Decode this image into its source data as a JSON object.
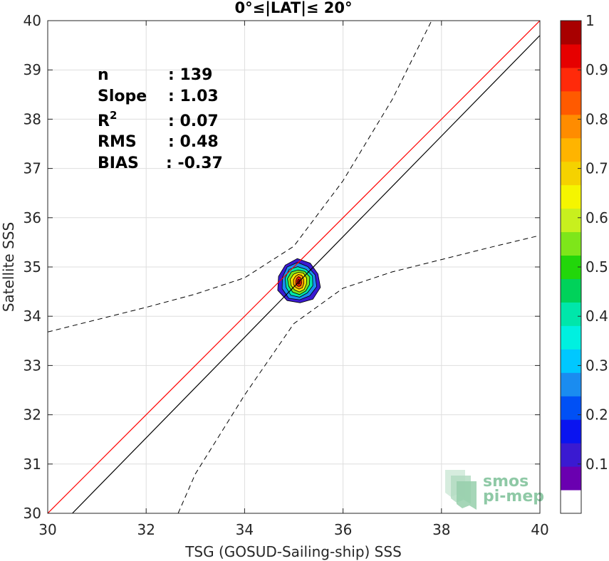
{
  "chart_data": {
    "type": "scatter",
    "title": "0°≤|LAT|≤ 20°",
    "xlabel": "TSG (GOSUD-Sailing-ship) SSS",
    "ylabel": "Satellite SSS",
    "xlim": [
      30,
      40
    ],
    "ylim": [
      30,
      40
    ],
    "xticks": [
      "30",
      "32",
      "34",
      "36",
      "38",
      "40"
    ],
    "yticks": [
      "30",
      "31",
      "32",
      "33",
      "34",
      "35",
      "36",
      "37",
      "38",
      "39",
      "40"
    ],
    "grid": true,
    "stats": [
      {
        "key": "n",
        "value": ": 139"
      },
      {
        "key": "Slope",
        "value": ": 1.03"
      },
      {
        "key": "R",
        "sup": "2",
        "value": ": 0.07"
      },
      {
        "key": "RMS",
        "value": ": 0.48"
      },
      {
        "key": "BIAS",
        "value": ": -0.37"
      }
    ],
    "identity_line": {
      "color": "#ff0000",
      "points": [
        [
          30,
          30
        ],
        [
          40,
          40
        ]
      ]
    },
    "fit_line": {
      "color": "#000000",
      "points": [
        [
          30.5,
          30
        ],
        [
          40,
          39.7
        ]
      ]
    },
    "upper_bound": [
      [
        30,
        33.68
      ],
      [
        32,
        34.18
      ],
      [
        33,
        34.45
      ],
      [
        34,
        34.78
      ],
      [
        35,
        35.42
      ],
      [
        36,
        36.75
      ],
      [
        37,
        38.4
      ],
      [
        37.8,
        40
      ]
    ],
    "lower_bound": [
      [
        32.65,
        30
      ],
      [
        33,
        30.8
      ],
      [
        34,
        32.4
      ],
      [
        35,
        33.85
      ],
      [
        36,
        34.57
      ],
      [
        37,
        34.9
      ],
      [
        38,
        35.15
      ],
      [
        39,
        35.4
      ],
      [
        40,
        35.64
      ]
    ],
    "density_contours": {
      "center": [
        35.1,
        34.7
      ],
      "levels": [
        {
          "level": 0.05,
          "rx": 0.44,
          "ry": 0.45,
          "color": "#3a1ad1"
        },
        {
          "level": 0.3,
          "rx": 0.36,
          "ry": 0.38,
          "color": "#1a8cf0"
        },
        {
          "level": 0.45,
          "rx": 0.29,
          "ry": 0.31,
          "color": "#00e6aa"
        },
        {
          "level": 0.55,
          "rx": 0.23,
          "ry": 0.25,
          "color": "#7ee61a"
        },
        {
          "level": 0.65,
          "rx": 0.17,
          "ry": 0.2,
          "color": "#f5e600"
        },
        {
          "level": 0.75,
          "rx": 0.11,
          "ry": 0.15,
          "color": "#ff9900"
        },
        {
          "level": 0.9,
          "rx": 0.06,
          "ry": 0.1,
          "color": "#e61a0a"
        },
        {
          "level": 1.0,
          "rx": 0.025,
          "ry": 0.05,
          "color": "#a80000"
        }
      ]
    },
    "colorbar": {
      "ticks": [
        "0.1",
        "0.2",
        "0.3",
        "0.4",
        "0.5",
        "0.6",
        "0.7",
        "0.8",
        "0.9",
        "1"
      ],
      "colors": [
        "#ffffff",
        "#6a00b0",
        "#3a1ad1",
        "#0a14f0",
        "#0050f5",
        "#1a8cf0",
        "#00c8ff",
        "#00f0e0",
        "#00e6aa",
        "#00d25a",
        "#22d60a",
        "#7ee61a",
        "#c8f01e",
        "#f5f500",
        "#f5d200",
        "#ffb400",
        "#ff8c00",
        "#ff5a00",
        "#ff2a0a",
        "#e60000",
        "#a80000"
      ]
    },
    "logo": {
      "line1": "smos",
      "line2": "pi-mep"
    }
  }
}
